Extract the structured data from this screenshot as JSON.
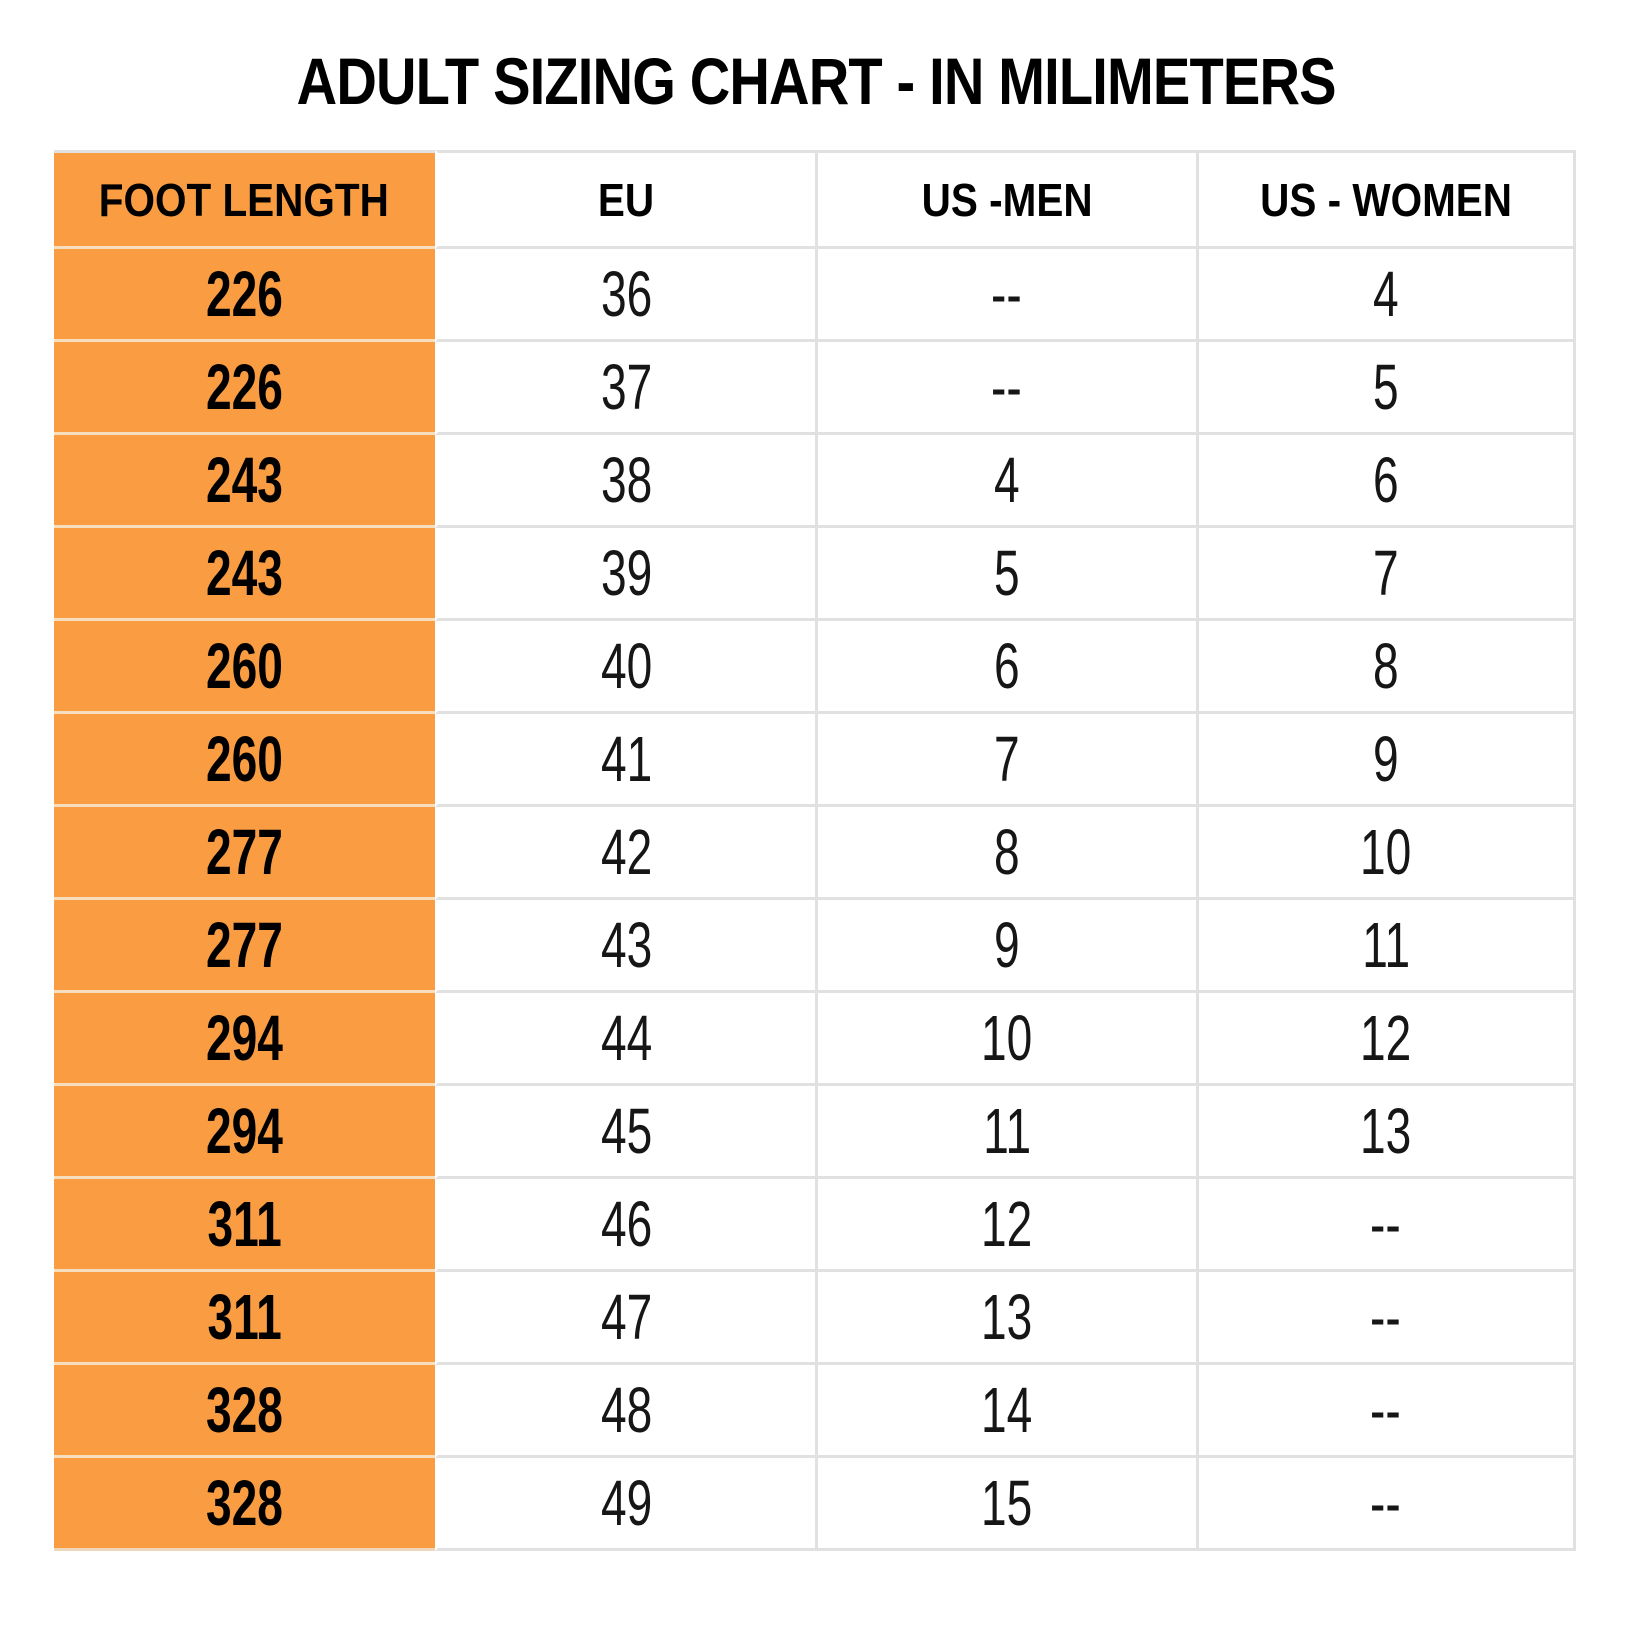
{
  "page": {
    "background": "#ffffff"
  },
  "colors": {
    "accent_orange": "#f99c42",
    "orange_row_divider": "#f6debf",
    "grid_gray": "#e1e1e1",
    "text_black": "#000000"
  },
  "chart_data": {
    "type": "table",
    "title": "ADULT SIZING CHART - IN MILIMETERS",
    "columns": [
      "FOOT LENGTH",
      "EU",
      "US -MEN",
      "US - WOMEN"
    ],
    "rows": [
      [
        "226",
        "36",
        "--",
        "4"
      ],
      [
        "226",
        "37",
        "--",
        "5"
      ],
      [
        "243",
        "38",
        "4",
        "6"
      ],
      [
        "243",
        "39",
        "5",
        "7"
      ],
      [
        "260",
        "40",
        "6",
        "8"
      ],
      [
        "260",
        "41",
        "7",
        "9"
      ],
      [
        "277",
        "42",
        "8",
        "10"
      ],
      [
        "277",
        "43",
        "9",
        "11"
      ],
      [
        "294",
        "44",
        "10",
        "12"
      ],
      [
        "294",
        "45",
        "11",
        "13"
      ],
      [
        "311",
        "46",
        "12",
        "--"
      ],
      [
        "311",
        "47",
        "13",
        "--"
      ],
      [
        "328",
        "48",
        "14",
        "--"
      ],
      [
        "328",
        "49",
        "15",
        "--"
      ]
    ],
    "layout": {
      "first_column_highlight": "orange",
      "gridlines": true,
      "header_row": true
    }
  }
}
